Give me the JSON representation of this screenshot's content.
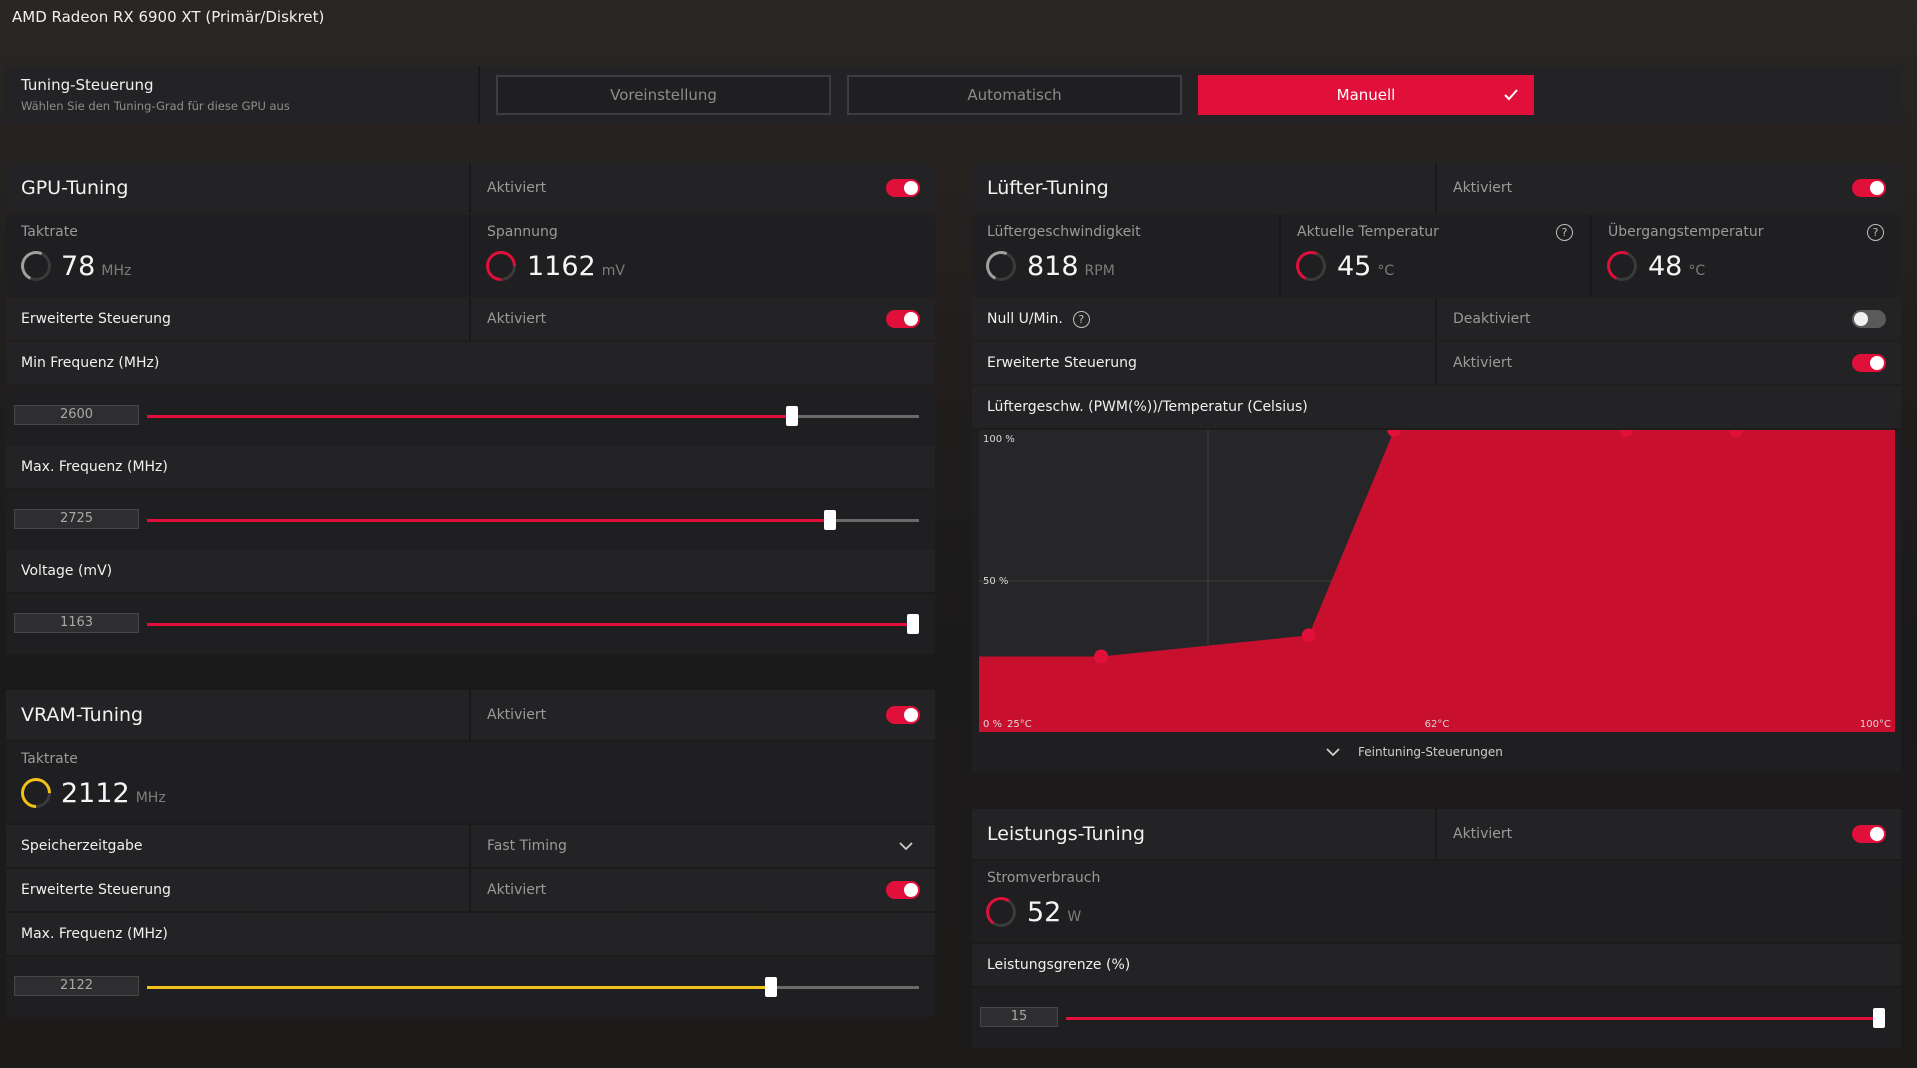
{
  "window_title": "AMD Radeon RX 6900 XT (Primär/Diskret)",
  "tuning_control": {
    "title": "Tuning-Steuerung",
    "subtitle": "Wählen Sie den Tuning-Grad für diese GPU aus",
    "buttons": [
      {
        "label": "Voreinstellung",
        "active": false
      },
      {
        "label": "Automatisch",
        "active": false
      },
      {
        "label": "Manuell",
        "active": true
      }
    ]
  },
  "gpu_tuning": {
    "title": "GPU-Tuning",
    "status": "Aktiviert",
    "clock": {
      "label": "Taktrate",
      "value": "78",
      "unit": "MHz"
    },
    "voltage": {
      "label": "Spannung",
      "value": "1162",
      "unit": "mV"
    },
    "advanced": {
      "label": "Erweiterte Steuerung",
      "status": "Aktiviert"
    },
    "min_freq": {
      "label": "Min Frequenz (MHz)",
      "value": "2600",
      "fraction": 0.84
    },
    "max_freq": {
      "label": "Max. Frequenz (MHz)",
      "value": "2725",
      "fraction": 0.89
    },
    "voltage_slider": {
      "label": "Voltage (mV)",
      "value": "1163",
      "fraction": 1.0
    }
  },
  "vram_tuning": {
    "title": "VRAM-Tuning",
    "status": "Aktiviert",
    "clock": {
      "label": "Taktrate",
      "value": "2112",
      "unit": "MHz"
    },
    "timing": {
      "label": "Speicherzeitgabe",
      "value": "Fast Timing"
    },
    "advanced": {
      "label": "Erweiterte Steuerung",
      "status": "Aktiviert"
    },
    "max_freq": {
      "label": "Max. Frequenz (MHz)",
      "value": "2122",
      "fraction": 0.81
    }
  },
  "fan_tuning": {
    "title": "Lüfter-Tuning",
    "status": "Aktiviert",
    "fan_speed": {
      "label": "Lüftergeschwindigkeit",
      "value": "818",
      "unit": "RPM"
    },
    "current_temp": {
      "label": "Aktuelle Temperatur",
      "value": "45",
      "unit": "°C"
    },
    "junction_temp": {
      "label": "Übergangstemperatur",
      "value": "48",
      "unit": "°C"
    },
    "zero_rpm": {
      "label": "Null U/Min.",
      "status": "Deaktiviert"
    },
    "advanced": {
      "label": "Erweiterte Steuerung",
      "status": "Aktiviert"
    },
    "curve_title": "Lüftergeschw. (PWM(%))/Temperatur (Celsius)",
    "fine_tuning": "Feintuning-Steuerungen"
  },
  "chart_data": {
    "type": "area",
    "title": "Lüftergeschw. (PWM(%))/Temperatur (Celsius)",
    "y_tick_labels": [
      "0 %",
      "50 %",
      "100 %"
    ],
    "x_tick_labels": [
      "25°C",
      "62°C",
      "100°C"
    ],
    "xlim": [
      25,
      100
    ],
    "ylim": [
      0,
      100
    ],
    "series": [
      {
        "x": [
          35,
          52,
          59,
          78,
          87
        ],
        "y": [
          25,
          32,
          100,
          100,
          100
        ]
      }
    ],
    "color": "#c8102e"
  },
  "power_tuning": {
    "title": "Leistungs-Tuning",
    "status": "Aktiviert",
    "consumption": {
      "label": "Stromverbrauch",
      "value": "52",
      "unit": "W"
    },
    "limit": {
      "label": "Leistungsgrenze (%)",
      "value": "15",
      "fraction": 1.0
    }
  },
  "colors": {
    "accent": "#e0103a",
    "vram_accent": "#f3c21a"
  }
}
